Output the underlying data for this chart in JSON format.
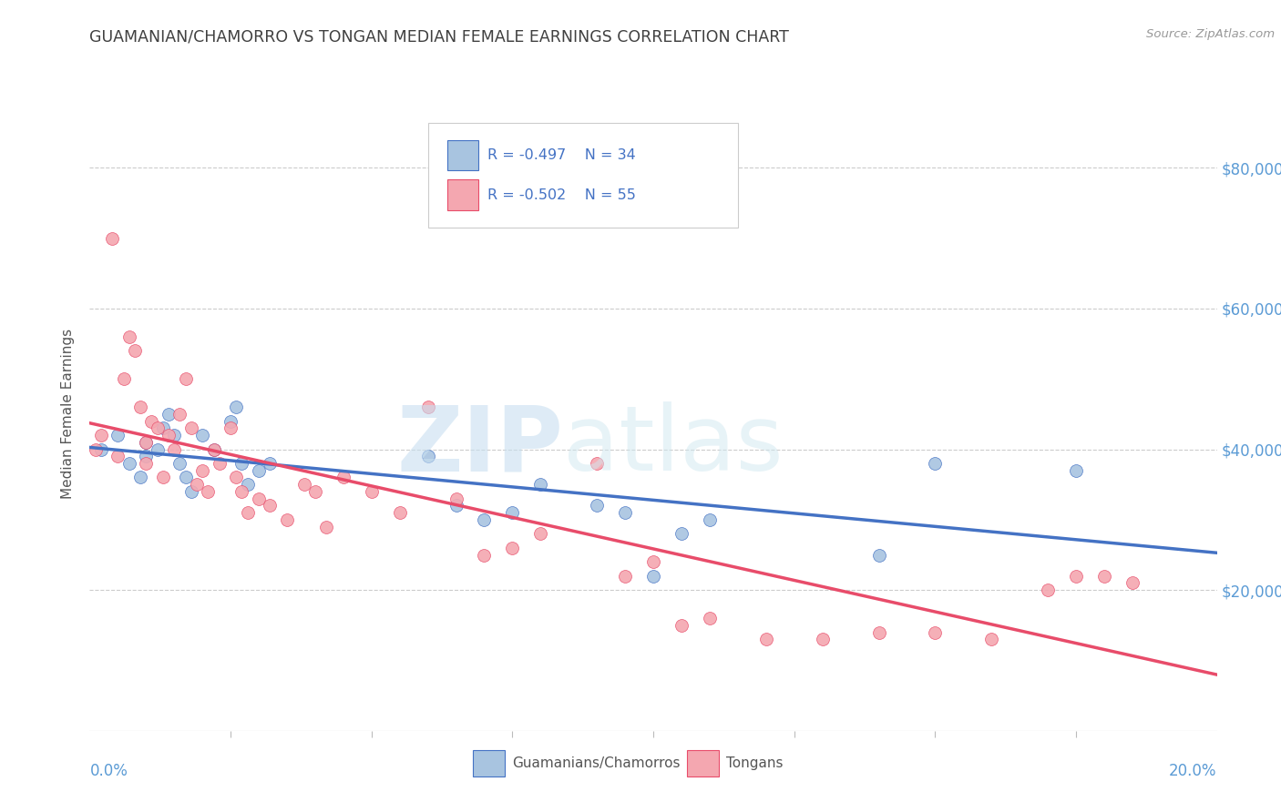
{
  "title": "GUAMANIAN/CHAMORRO VS TONGAN MEDIAN FEMALE EARNINGS CORRELATION CHART",
  "source": "Source: ZipAtlas.com",
  "ylabel": "Median Female Earnings",
  "ytick_labels": [
    "$20,000",
    "$40,000",
    "$60,000",
    "$80,000"
  ],
  "ytick_values": [
    20000,
    40000,
    60000,
    80000
  ],
  "xlim": [
    0.0,
    0.2
  ],
  "ylim": [
    0,
    90000
  ],
  "legend_label1": "Guamanians/Chamorros",
  "legend_label2": "Tongans",
  "R1": "-0.497",
  "N1": "34",
  "R2": "-0.502",
  "N2": "55",
  "color_blue": "#a8c4e0",
  "color_pink": "#f4a7b0",
  "line_color_blue": "#4472c4",
  "line_color_pink": "#e84c6a",
  "title_color": "#404040",
  "axis_label_color": "#5b9bd5",
  "blue_x": [
    0.002,
    0.005,
    0.007,
    0.009,
    0.01,
    0.01,
    0.012,
    0.013,
    0.014,
    0.015,
    0.016,
    0.017,
    0.018,
    0.02,
    0.022,
    0.025,
    0.026,
    0.027,
    0.028,
    0.03,
    0.032,
    0.06,
    0.065,
    0.07,
    0.075,
    0.08,
    0.09,
    0.095,
    0.1,
    0.105,
    0.11,
    0.14,
    0.15,
    0.175
  ],
  "blue_y": [
    40000,
    42000,
    38000,
    36000,
    41000,
    39000,
    40000,
    43000,
    45000,
    42000,
    38000,
    36000,
    34000,
    42000,
    40000,
    44000,
    46000,
    38000,
    35000,
    37000,
    38000,
    39000,
    32000,
    30000,
    31000,
    35000,
    32000,
    31000,
    22000,
    28000,
    30000,
    25000,
    38000,
    37000
  ],
  "pink_x": [
    0.001,
    0.002,
    0.004,
    0.005,
    0.006,
    0.007,
    0.008,
    0.009,
    0.01,
    0.01,
    0.011,
    0.012,
    0.013,
    0.014,
    0.015,
    0.016,
    0.017,
    0.018,
    0.019,
    0.02,
    0.021,
    0.022,
    0.023,
    0.025,
    0.026,
    0.027,
    0.028,
    0.03,
    0.032,
    0.035,
    0.038,
    0.04,
    0.042,
    0.045,
    0.05,
    0.055,
    0.06,
    0.065,
    0.07,
    0.075,
    0.08,
    0.09,
    0.095,
    0.1,
    0.105,
    0.11,
    0.12,
    0.13,
    0.14,
    0.15,
    0.16,
    0.17,
    0.175,
    0.18,
    0.185
  ],
  "pink_y": [
    40000,
    42000,
    70000,
    39000,
    50000,
    56000,
    54000,
    46000,
    38000,
    41000,
    44000,
    43000,
    36000,
    42000,
    40000,
    45000,
    50000,
    43000,
    35000,
    37000,
    34000,
    40000,
    38000,
    43000,
    36000,
    34000,
    31000,
    33000,
    32000,
    30000,
    35000,
    34000,
    29000,
    36000,
    34000,
    31000,
    46000,
    33000,
    25000,
    26000,
    28000,
    38000,
    22000,
    24000,
    15000,
    16000,
    13000,
    13000,
    14000,
    14000,
    13000,
    20000,
    22000,
    22000,
    21000
  ]
}
